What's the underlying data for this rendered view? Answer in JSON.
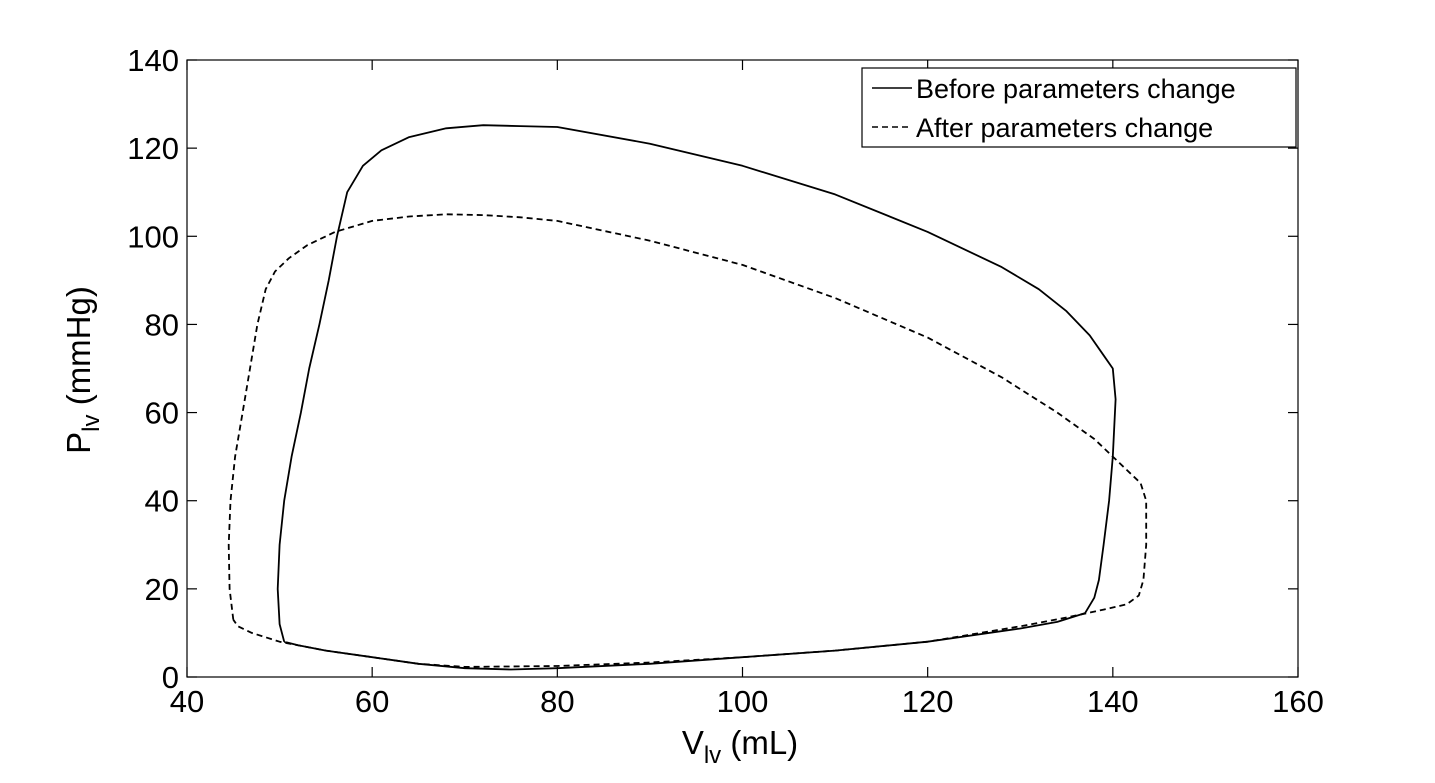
{
  "chart_data": {
    "type": "line",
    "title": "",
    "xlabel": "V",
    "xlabel_sub": "lv",
    "xlabel_unit": " (mL)",
    "ylabel": "P",
    "ylabel_sub": "lv",
    "ylabel_unit": " (mmHg)",
    "xlim": [
      40,
      160
    ],
    "ylim": [
      0,
      140
    ],
    "xticks": [
      40,
      60,
      80,
      100,
      120,
      140,
      160
    ],
    "yticks": [
      0,
      20,
      40,
      60,
      80,
      100,
      120,
      140
    ],
    "grid": false,
    "legend_position": "top-right",
    "series": [
      {
        "name": "Before parameters change",
        "style": "solid",
        "color": "#000000",
        "points": [
          [
            50.5,
            8
          ],
          [
            50.0,
            12
          ],
          [
            49.8,
            20
          ],
          [
            50.0,
            30
          ],
          [
            50.5,
            40
          ],
          [
            51.3,
            50
          ],
          [
            52.3,
            60
          ],
          [
            53.2,
            70
          ],
          [
            54.3,
            80
          ],
          [
            55.3,
            90
          ],
          [
            56.2,
            100
          ],
          [
            57.3,
            110
          ],
          [
            59.0,
            116
          ],
          [
            61.0,
            119.5
          ],
          [
            64.0,
            122.5
          ],
          [
            68.0,
            124.5
          ],
          [
            72.0,
            125.2
          ],
          [
            76.0,
            125.0
          ],
          [
            80.0,
            124.8
          ],
          [
            90.0,
            121
          ],
          [
            100.0,
            116
          ],
          [
            110.0,
            109.5
          ],
          [
            120.0,
            101
          ],
          [
            128.0,
            93
          ],
          [
            132.0,
            88
          ],
          [
            135.0,
            83
          ],
          [
            137.5,
            77.5
          ],
          [
            139.0,
            73
          ],
          [
            140.0,
            70
          ],
          [
            140.3,
            63
          ],
          [
            140.0,
            50
          ],
          [
            139.6,
            40
          ],
          [
            139.0,
            30
          ],
          [
            138.5,
            22
          ],
          [
            138.0,
            18
          ],
          [
            137.0,
            14.5
          ],
          [
            134.0,
            12.5
          ],
          [
            130.0,
            11
          ],
          [
            120.0,
            8
          ],
          [
            110.0,
            6
          ],
          [
            100.0,
            4.5
          ],
          [
            90.0,
            3
          ],
          [
            80.0,
            2
          ],
          [
            75.0,
            1.7
          ],
          [
            70.0,
            2
          ],
          [
            65.0,
            3
          ],
          [
            60.0,
            4.5
          ],
          [
            55.0,
            6
          ],
          [
            52.0,
            7.2
          ],
          [
            50.5,
            8
          ]
        ]
      },
      {
        "name": "After parameters change",
        "style": "dashed",
        "color": "#000000",
        "points": [
          [
            45.0,
            13
          ],
          [
            44.6,
            20
          ],
          [
            44.5,
            30
          ],
          [
            44.7,
            40
          ],
          [
            45.2,
            50
          ],
          [
            46.0,
            60
          ],
          [
            46.8,
            70
          ],
          [
            47.6,
            80
          ],
          [
            48.5,
            88
          ],
          [
            49.5,
            92
          ],
          [
            51.0,
            95
          ],
          [
            53.0,
            98
          ],
          [
            56.0,
            101
          ],
          [
            60.0,
            103.5
          ],
          [
            64.0,
            104.5
          ],
          [
            68.0,
            105
          ],
          [
            72.0,
            104.8
          ],
          [
            76.0,
            104.3
          ],
          [
            80.0,
            103.5
          ],
          [
            90.0,
            99
          ],
          [
            100.0,
            93.5
          ],
          [
            110.0,
            86
          ],
          [
            120.0,
            77
          ],
          [
            128.0,
            68
          ],
          [
            134.0,
            60
          ],
          [
            138.0,
            54
          ],
          [
            140.0,
            50
          ],
          [
            141.5,
            47
          ],
          [
            143.0,
            44
          ],
          [
            143.6,
            40
          ],
          [
            143.6,
            30
          ],
          [
            143.3,
            22
          ],
          [
            142.8,
            18.5
          ],
          [
            141.5,
            16.5
          ],
          [
            139.0,
            15.3
          ],
          [
            135.0,
            13.5
          ],
          [
            130.0,
            11.5
          ],
          [
            120.0,
            8
          ],
          [
            110.0,
            6
          ],
          [
            100.0,
            4.5
          ],
          [
            90.0,
            3.3
          ],
          [
            80.0,
            2.5
          ],
          [
            70.0,
            2.3
          ],
          [
            65.0,
            3
          ],
          [
            60.0,
            4.5
          ],
          [
            55.0,
            6
          ],
          [
            50.0,
            8
          ],
          [
            47.0,
            10
          ],
          [
            45.5,
            11.5
          ],
          [
            45.0,
            13
          ]
        ]
      }
    ]
  }
}
